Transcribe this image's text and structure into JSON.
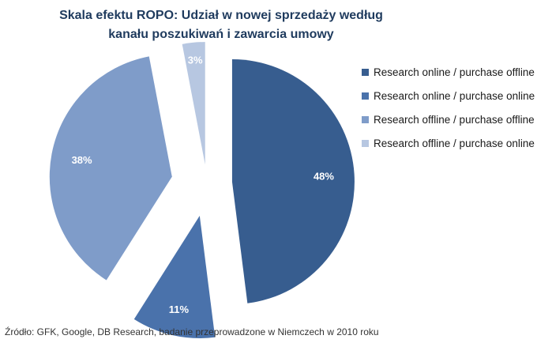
{
  "chart_data": {
    "type": "pie",
    "exploded": true,
    "title": "Skala efektu ROPO: Udział w nowej sprzedaży według kanału poszukiwań i zawarcia umowy",
    "categories": [
      "Research online / purchase offline",
      "Research online / purchase online",
      "Research offline / purchase offline",
      "Research offline / purchase online"
    ],
    "values": [
      48,
      11,
      38,
      3
    ],
    "labels": [
      "48%",
      "11%",
      "38%",
      "3%"
    ],
    "colors": [
      "#375d8f",
      "#4a72ab",
      "#7f9cc9",
      "#b7c7e1"
    ],
    "legend_position": "right"
  },
  "source": "Źródło: GFK, Google, DB Research, badanie przeprowadzone w Niemczech w 2010 roku"
}
